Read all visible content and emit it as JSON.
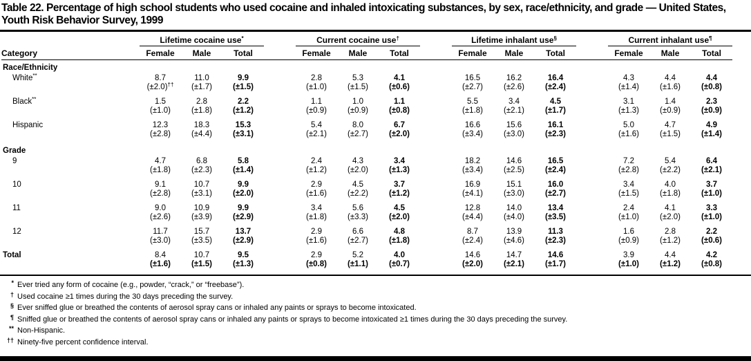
{
  "page": {
    "title": "Table 22. Percentage of high school students who used cocaine and inhaled intoxicating substances, by sex, race/ethnicity, and grade — United States, Youth Risk Behavior Survey, 1999"
  },
  "table": {
    "category_header": "Category",
    "groups": [
      "Lifetime cocaine use*",
      "Current cocaine use†",
      "Lifetime inhalant use§",
      "Current inhalant use¶"
    ],
    "sub_columns": [
      "Female",
      "Male",
      "Total"
    ],
    "rows": [
      {
        "type": "section",
        "label": "Race/Ethnicity"
      },
      {
        "type": "data",
        "label": "White**",
        "indent": true,
        "values": [
          "8.7",
          "11.0",
          "9.9",
          "2.8",
          "5.3",
          "4.1",
          "16.5",
          "16.2",
          "16.4",
          "4.3",
          "4.4",
          "4.4"
        ],
        "ci": [
          "(±2.0)††",
          "(±1.7)",
          "(±1.5)",
          "(±1.0)",
          "(±1.5)",
          "(±0.6)",
          "(±2.7)",
          "(±2.6)",
          "(±2.4)",
          "(±1.4)",
          "(±1.6)",
          "(±0.8)"
        ]
      },
      {
        "type": "data",
        "label": "Black**",
        "indent": true,
        "values": [
          "1.5",
          "2.8",
          "2.2",
          "1.1",
          "1.0",
          "1.1",
          "5.5",
          "3.4",
          "4.5",
          "3.1",
          "1.4",
          "2.3"
        ],
        "ci": [
          "(±1.0)",
          "(±1.8)",
          "(±1.2)",
          "(±0.9)",
          "(±0.9)",
          "(±0.8)",
          "(±1.8)",
          "(±2.1)",
          "(±1.7)",
          "(±1.3)",
          "(±0.9)",
          "(±0.9)"
        ]
      },
      {
        "type": "data",
        "label": "Hispanic",
        "indent": true,
        "values": [
          "12.3",
          "18.3",
          "15.3",
          "5.4",
          "8.0",
          "6.7",
          "16.6",
          "15.6",
          "16.1",
          "5.0",
          "4.7",
          "4.9"
        ],
        "ci": [
          "(±2.8)",
          "(±4.4)",
          "(±3.1)",
          "(±2.1)",
          "(±2.7)",
          "(±2.0)",
          "(±3.4)",
          "(±3.0)",
          "(±2.3)",
          "(±1.6)",
          "(±1.5)",
          "(±1.4)"
        ]
      },
      {
        "type": "section",
        "label": "Grade"
      },
      {
        "type": "data",
        "label": "9",
        "indent": true,
        "values": [
          "4.7",
          "6.8",
          "5.8",
          "2.4",
          "4.3",
          "3.4",
          "18.2",
          "14.6",
          "16.5",
          "7.2",
          "5.4",
          "6.4"
        ],
        "ci": [
          "(±1.8)",
          "(±2.3)",
          "(±1.4)",
          "(±1.2)",
          "(±2.0)",
          "(±1.3)",
          "(±3.4)",
          "(±2.5)",
          "(±2.4)",
          "(±2.8)",
          "(±2.2)",
          "(±2.1)"
        ]
      },
      {
        "type": "data",
        "label": "10",
        "indent": true,
        "values": [
          "9.1",
          "10.7",
          "9.9",
          "2.9",
          "4.5",
          "3.7",
          "16.9",
          "15.1",
          "16.0",
          "3.4",
          "4.0",
          "3.7"
        ],
        "ci": [
          "(±2.8)",
          "(±3.1)",
          "(±2.0)",
          "(±1.6)",
          "(±2.2)",
          "(±1.2)",
          "(±4.1)",
          "(±3.0)",
          "(±2.7)",
          "(±1.5)",
          "(±1.8)",
          "(±1.0)"
        ]
      },
      {
        "type": "data",
        "label": "11",
        "indent": true,
        "values": [
          "9.0",
          "10.9",
          "9.9",
          "3.4",
          "5.6",
          "4.5",
          "12.8",
          "14.0",
          "13.4",
          "2.4",
          "4.1",
          "3.3"
        ],
        "ci": [
          "(±2.6)",
          "(±3.9)",
          "(±2.9)",
          "(±1.8)",
          "(±3.3)",
          "(±2.0)",
          "(±4.4)",
          "(±4.0)",
          "(±3.5)",
          "(±1.0)",
          "(±2.0)",
          "(±1.0)"
        ]
      },
      {
        "type": "data",
        "label": "12",
        "indent": true,
        "values": [
          "11.7",
          "15.7",
          "13.7",
          "2.9",
          "6.6",
          "4.8",
          "8.7",
          "13.9",
          "11.3",
          "1.6",
          "2.8",
          "2.2"
        ],
        "ci": [
          "(±3.0)",
          "(±3.5)",
          "(±2.9)",
          "(±1.6)",
          "(±2.7)",
          "(±1.8)",
          "(±2.4)",
          "(±4.6)",
          "(±2.3)",
          "(±0.9)",
          "(±1.2)",
          "(±0.6)"
        ]
      },
      {
        "type": "data",
        "label": "Total",
        "indent": false,
        "bold_label": true,
        "bold_ci": true,
        "values": [
          "8.4",
          "10.7",
          "9.5",
          "2.9",
          "5.2",
          "4.0",
          "14.6",
          "14.7",
          "14.6",
          "3.9",
          "4.4",
          "4.2"
        ],
        "ci": [
          "(±1.6)",
          "(±1.5)",
          "(±1.3)",
          "(±0.8)",
          "(±1.1)",
          "(±0.7)",
          "(±2.0)",
          "(±2.1)",
          "(±1.7)",
          "(±1.0)",
          "(±1.2)",
          "(±0.8)"
        ]
      }
    ]
  },
  "footnotes": [
    {
      "symbol": "*",
      "text": "Ever tried any form of cocaine (e.g., powder, “crack,” or “freebase”)."
    },
    {
      "symbol": "†",
      "text": "Used cocaine ≥1 times during the 30 days preceding the survey."
    },
    {
      "symbol": "§",
      "text": "Ever sniffed glue or breathed the contents of aerosol spray cans or inhaled any paints or sprays to become intoxicated."
    },
    {
      "symbol": "¶",
      "text": "Sniffed glue or breathed the contents of aerosol spray cans or inhaled any paints or sprays to become intoxicated ≥1 times during the 30 days preceding the survey."
    },
    {
      "symbol": "**",
      "text": "Non-Hispanic."
    },
    {
      "symbol": "††",
      "text": "Ninety-five percent confidence interval."
    }
  ]
}
